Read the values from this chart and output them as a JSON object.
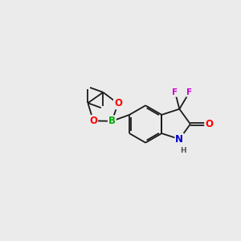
{
  "background_color": "#ebebeb",
  "bond_color": "#1a1a1a",
  "bond_width": 1.3,
  "atom_colors": {
    "O": "#ff0000",
    "N": "#0000cc",
    "B": "#00aa00",
    "F": "#cc00cc",
    "C": "#1a1a1a",
    "H": "#555555"
  },
  "font_size_atom": 7.5,
  "xlim": [
    0,
    10
  ],
  "ylim": [
    0,
    10
  ]
}
